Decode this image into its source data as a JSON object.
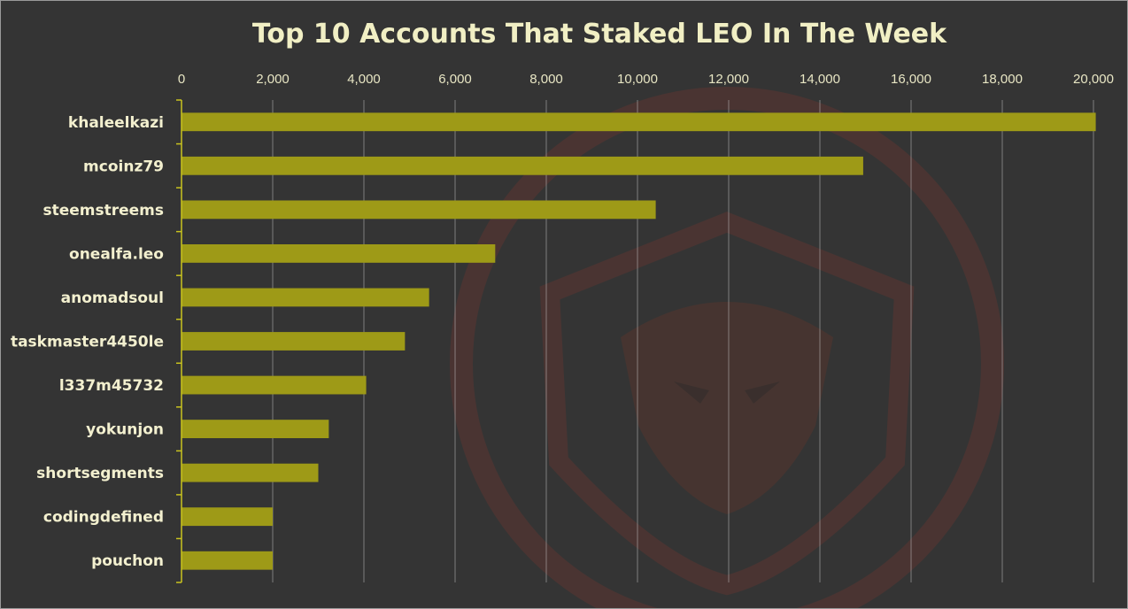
{
  "colors": {
    "background": "#343434",
    "bar": "#9e9a17",
    "axis": "#c9c31f",
    "grid": "#d9d9d9",
    "text": "#f1efc4"
  },
  "chart_data": {
    "type": "bar",
    "orientation": "horizontal",
    "title": "Top 10 Accounts That Staked LEO In The Week",
    "xlabel": "",
    "ylabel": "",
    "xlim": [
      0,
      20000
    ],
    "x_ticks": [
      "0",
      "2,000",
      "4,000",
      "6,000",
      "8,000",
      "10,000",
      "12,000",
      "14,000",
      "16,000",
      "18,000",
      "20,000"
    ],
    "grid": true,
    "legend": "none",
    "categories": [
      "khaleelkazi",
      "mcoinz79",
      "steemstreems",
      "onealfa.leo",
      "anomadsoul",
      "taskmaster4450le",
      "l337m45732",
      "yokunjon",
      "shortsegments",
      "codingdefined",
      "pouchon"
    ],
    "values": [
      20050,
      14950,
      10400,
      6880,
      5430,
      4900,
      4050,
      3230,
      3000,
      2000,
      2000
    ]
  }
}
